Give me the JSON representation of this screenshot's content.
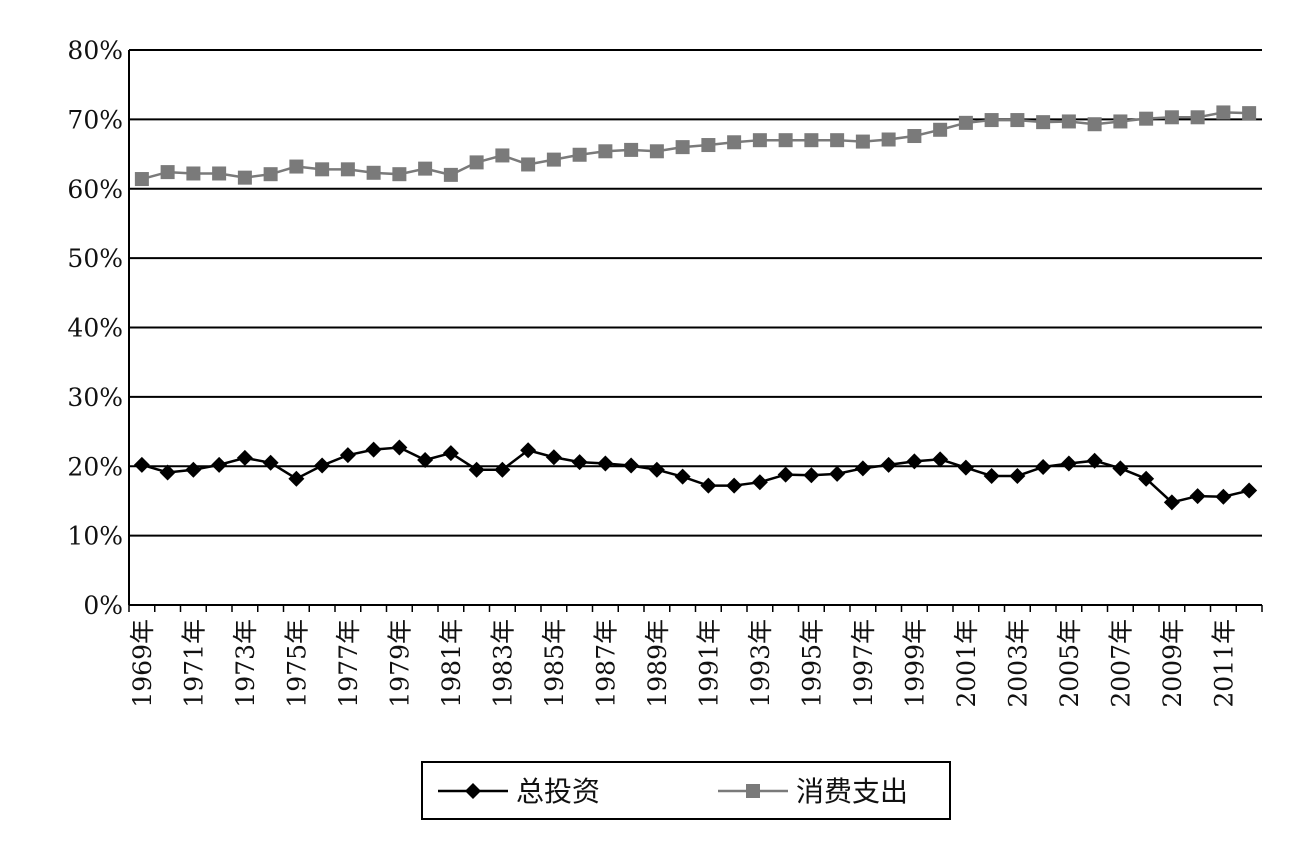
{
  "chart_data": {
    "type": "line",
    "title": "",
    "xlabel": "",
    "ylabel": "",
    "ylim": [
      0,
      80
    ],
    "y_unit": "%",
    "y_ticks": [
      "0%",
      "10%",
      "20%",
      "30%",
      "40%",
      "50%",
      "60%",
      "70%",
      "80%"
    ],
    "grid": "horizontal",
    "legend_position": "bottom",
    "x": [
      "1969年",
      "1970年",
      "1971年",
      "1972年",
      "1973年",
      "1974年",
      "1975年",
      "1976年",
      "1977年",
      "1978年",
      "1979年",
      "1980年",
      "1981年",
      "1982年",
      "1983年",
      "1984年",
      "1985年",
      "1986年",
      "1987年",
      "1988年",
      "1989年",
      "1990年",
      "1991年",
      "1992年",
      "1993年",
      "1994年",
      "1995年",
      "1996年",
      "1997年",
      "1998年",
      "1999年",
      "2000年",
      "2001年",
      "2002年",
      "2003年",
      "2004年",
      "2005年",
      "2006年",
      "2007年",
      "2008年",
      "2009年",
      "2010年",
      "2011年",
      "2012年"
    ],
    "x_tick_labels": [
      "1969年",
      "1971年",
      "1973年",
      "1975年",
      "1977年",
      "1979年",
      "1981年",
      "1983年",
      "1985年",
      "1987年",
      "1989年",
      "1991年",
      "1993年",
      "1995年",
      "1997年",
      "1999年",
      "2001年",
      "2003年",
      "2005年",
      "2007年",
      "2009年",
      "2011年"
    ],
    "series": [
      {
        "name": "总投资",
        "color": "#000000",
        "marker": "diamond",
        "values": [
          20.2,
          19.1,
          19.5,
          20.2,
          21.2,
          20.5,
          18.2,
          20.1,
          21.6,
          22.4,
          22.7,
          20.9,
          21.9,
          19.5,
          19.5,
          22.3,
          21.3,
          20.6,
          20.4,
          20.1,
          19.5,
          18.5,
          17.2,
          17.2,
          17.7,
          18.8,
          18.7,
          18.9,
          19.7,
          20.2,
          20.7,
          21.0,
          19.8,
          18.6,
          18.6,
          19.9,
          20.4,
          20.8,
          19.7,
          18.2,
          14.8,
          15.7,
          15.6,
          16.5
        ]
      },
      {
        "name": "消费支出",
        "color": "#7a7a7a",
        "marker": "square",
        "values": [
          61.4,
          62.4,
          62.2,
          62.2,
          61.6,
          62.1,
          63.2,
          62.8,
          62.8,
          62.3,
          62.1,
          62.9,
          62.0,
          63.8,
          64.8,
          63.5,
          64.2,
          64.9,
          65.4,
          65.6,
          65.4,
          66.0,
          66.3,
          66.7,
          67.0,
          67.0,
          67.0,
          67.0,
          66.8,
          67.1,
          67.6,
          68.5,
          69.5,
          69.9,
          69.9,
          69.6,
          69.7,
          69.3,
          69.7,
          70.1,
          70.3,
          70.3,
          71.0,
          70.9
        ]
      }
    ]
  }
}
